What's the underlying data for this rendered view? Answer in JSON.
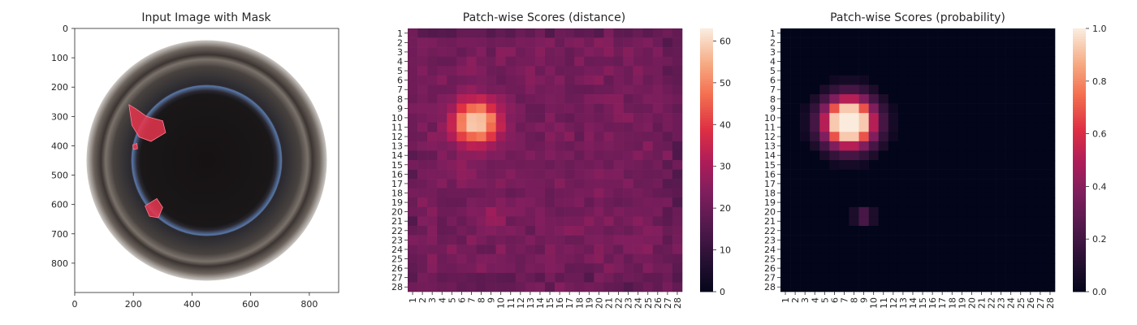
{
  "chart_data": [
    {
      "type": "image",
      "title": "Input Image with Mask",
      "xlabel": "",
      "ylabel": "",
      "xlim": [
        0,
        900
      ],
      "ylim": [
        900,
        0
      ],
      "xticks": [
        0,
        200,
        400,
        600,
        800
      ],
      "yticks": [
        0,
        100,
        200,
        300,
        400,
        500,
        600,
        700,
        800
      ],
      "content": "Top view of a bottle opening with red defect mask overlays",
      "image_center": [
        450,
        450
      ],
      "image_radius": 410,
      "mask_regions": [
        {
          "points": [
            [
              185,
              260
            ],
            [
              210,
              275
            ],
            [
              245,
              300
            ],
            [
              300,
              315
            ],
            [
              310,
              355
            ],
            [
              260,
              385
            ],
            [
              220,
              370
            ],
            [
              195,
              330
            ]
          ]
        },
        {
          "points": [
            [
              198,
              397
            ],
            [
              212,
              392
            ],
            [
              214,
              410
            ],
            [
              200,
              412
            ]
          ]
        },
        {
          "points": [
            [
              240,
              605
            ],
            [
              280,
              580
            ],
            [
              300,
              610
            ],
            [
              285,
              645
            ],
            [
              255,
              640
            ]
          ]
        }
      ]
    },
    {
      "type": "heatmap",
      "title": "Patch-wise Scores (distance)",
      "rows": 28,
      "cols": 28,
      "row_labels": [
        "1",
        "2",
        "3",
        "4",
        "5",
        "6",
        "7",
        "8",
        "9",
        "10",
        "11",
        "12",
        "13",
        "14",
        "15",
        "16",
        "17",
        "18",
        "19",
        "20",
        "21",
        "22",
        "23",
        "24",
        "25",
        "26",
        "27",
        "28"
      ],
      "col_labels": [
        "1",
        "2",
        "3",
        "4",
        "5",
        "6",
        "7",
        "8",
        "9",
        "10",
        "11",
        "12",
        "13",
        "14",
        "15",
        "16",
        "17",
        "18",
        "19",
        "20",
        "21",
        "22",
        "23",
        "24",
        "25",
        "26",
        "27",
        "28"
      ],
      "colorbar_ticks": [
        0,
        10,
        20,
        30,
        40,
        50,
        60
      ],
      "vmin": 0,
      "vmax": 63,
      "baseline": 21,
      "hotspots": [
        {
          "row": 10.5,
          "col": 7.5,
          "peak": 62,
          "radius": 2.4
        },
        {
          "row": 20.5,
          "col": 9,
          "peak": 30,
          "radius": 1.4
        },
        {
          "row": 15.5,
          "col": 6,
          "peak": 28,
          "radius": 1.5
        }
      ]
    },
    {
      "type": "heatmap",
      "title": "Patch-wise Scores (probability)",
      "rows": 28,
      "cols": 28,
      "row_labels": [
        "1",
        "2",
        "3",
        "4",
        "5",
        "6",
        "7",
        "8",
        "9",
        "10",
        "11",
        "12",
        "13",
        "14",
        "15",
        "16",
        "17",
        "18",
        "19",
        "20",
        "21",
        "22",
        "23",
        "24",
        "25",
        "26",
        "27",
        "28"
      ],
      "col_labels": [
        "1",
        "2",
        "3",
        "4",
        "5",
        "6",
        "7",
        "8",
        "9",
        "10",
        "11",
        "12",
        "13",
        "14",
        "15",
        "16",
        "17",
        "18",
        "19",
        "20",
        "21",
        "22",
        "23",
        "24",
        "25",
        "26",
        "27",
        "28"
      ],
      "colorbar_ticks": [
        "0.0",
        "0.2",
        "0.4",
        "0.6",
        "0.8",
        "1.0"
      ],
      "vmin": 0,
      "vmax": 1,
      "hotspots": [
        {
          "row": 10.5,
          "col": 7.5,
          "peak": 1.0,
          "radius": 2.6
        },
        {
          "row": 20.5,
          "col": 9,
          "peak": 0.22,
          "radius": 1.0
        }
      ]
    }
  ]
}
